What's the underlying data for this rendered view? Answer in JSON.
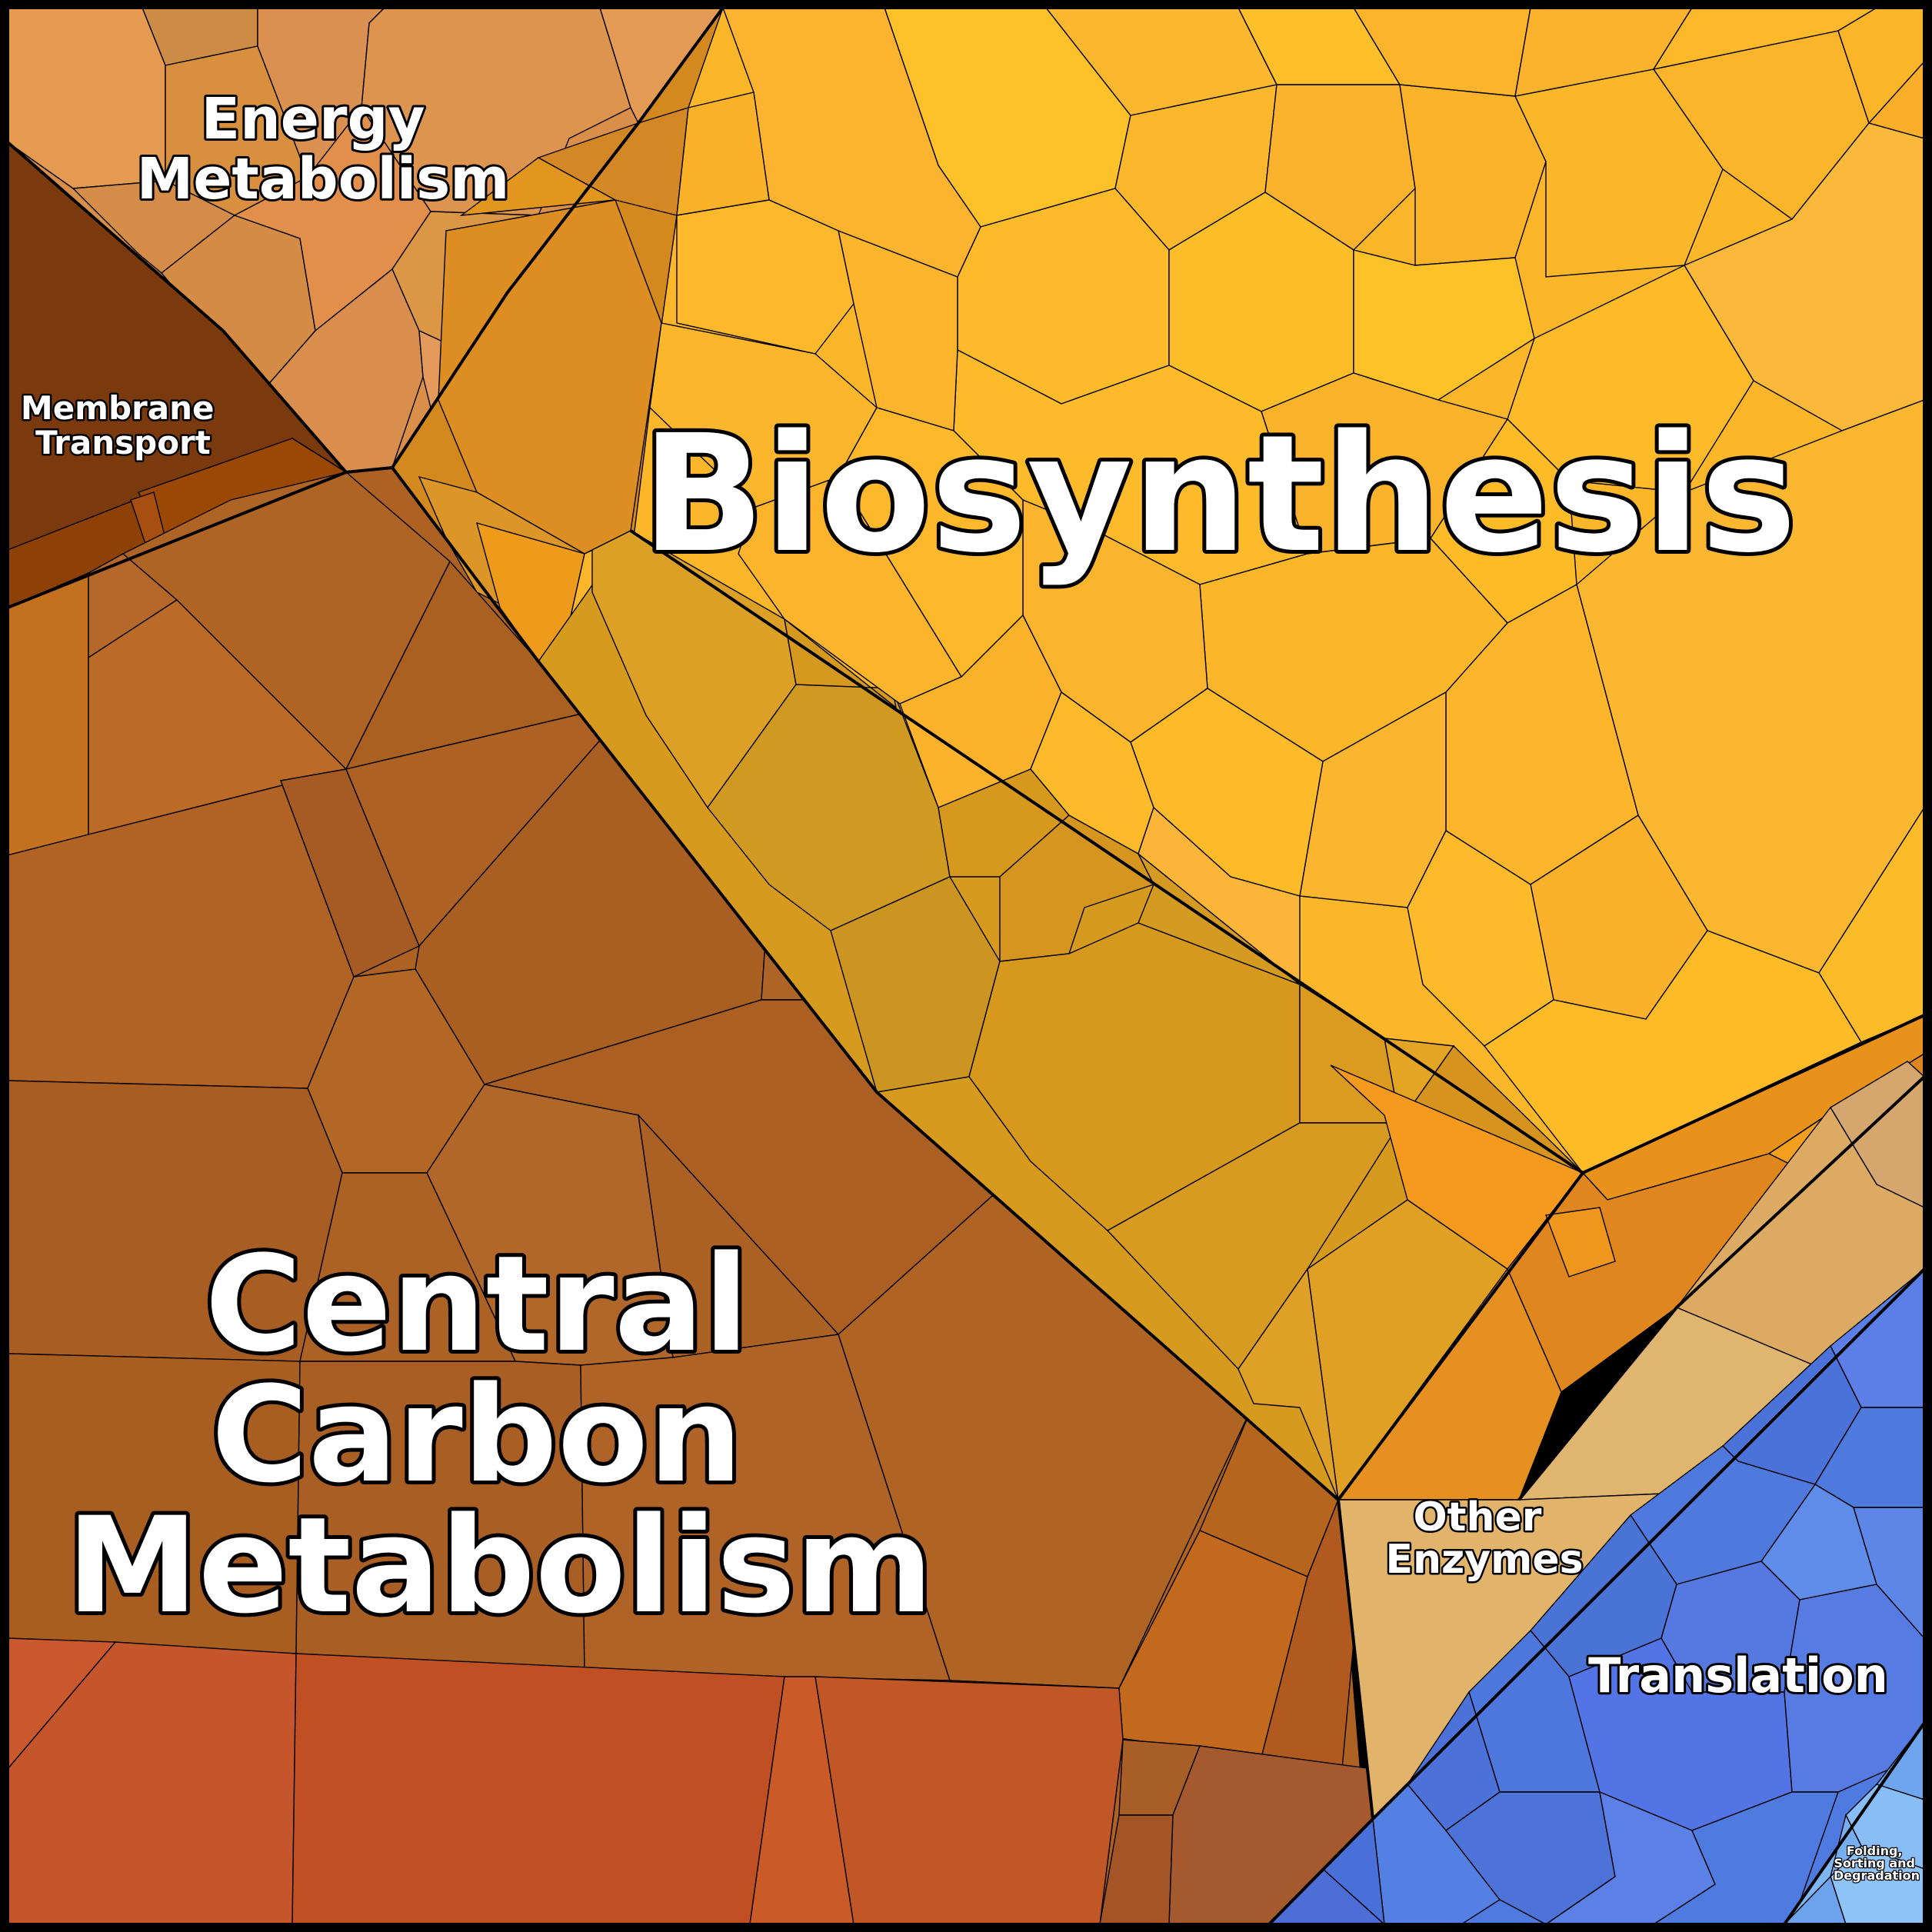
{
  "diagram": {
    "type": "voronoi-treemap",
    "regions": [
      {
        "id": "energy",
        "label_lines": [
          "Energy",
          "Metabolism"
        ],
        "color": "#D98E4A"
      },
      {
        "id": "membrane",
        "label_lines": [
          "Membrane",
          "Transport"
        ],
        "color": "#7A3A0E"
      },
      {
        "id": "biosynthesis",
        "label_lines": [
          "Biosynthesis"
        ],
        "color": "#FBB62A"
      },
      {
        "id": "central",
        "label_lines": [
          "Central",
          "Carbon",
          "Metabolism"
        ],
        "color": "#AD6224"
      },
      {
        "id": "other",
        "label_lines": [
          "Other",
          "Enzymes"
        ],
        "color": "#E0B46C"
      },
      {
        "id": "translation",
        "label_lines": [
          "Translation"
        ],
        "color": "#4F7BE0"
      },
      {
        "id": "folding",
        "label_lines": [
          "Folding,",
          "Sorting and",
          "Degradation"
        ],
        "color": "#7EB6F4"
      }
    ]
  }
}
